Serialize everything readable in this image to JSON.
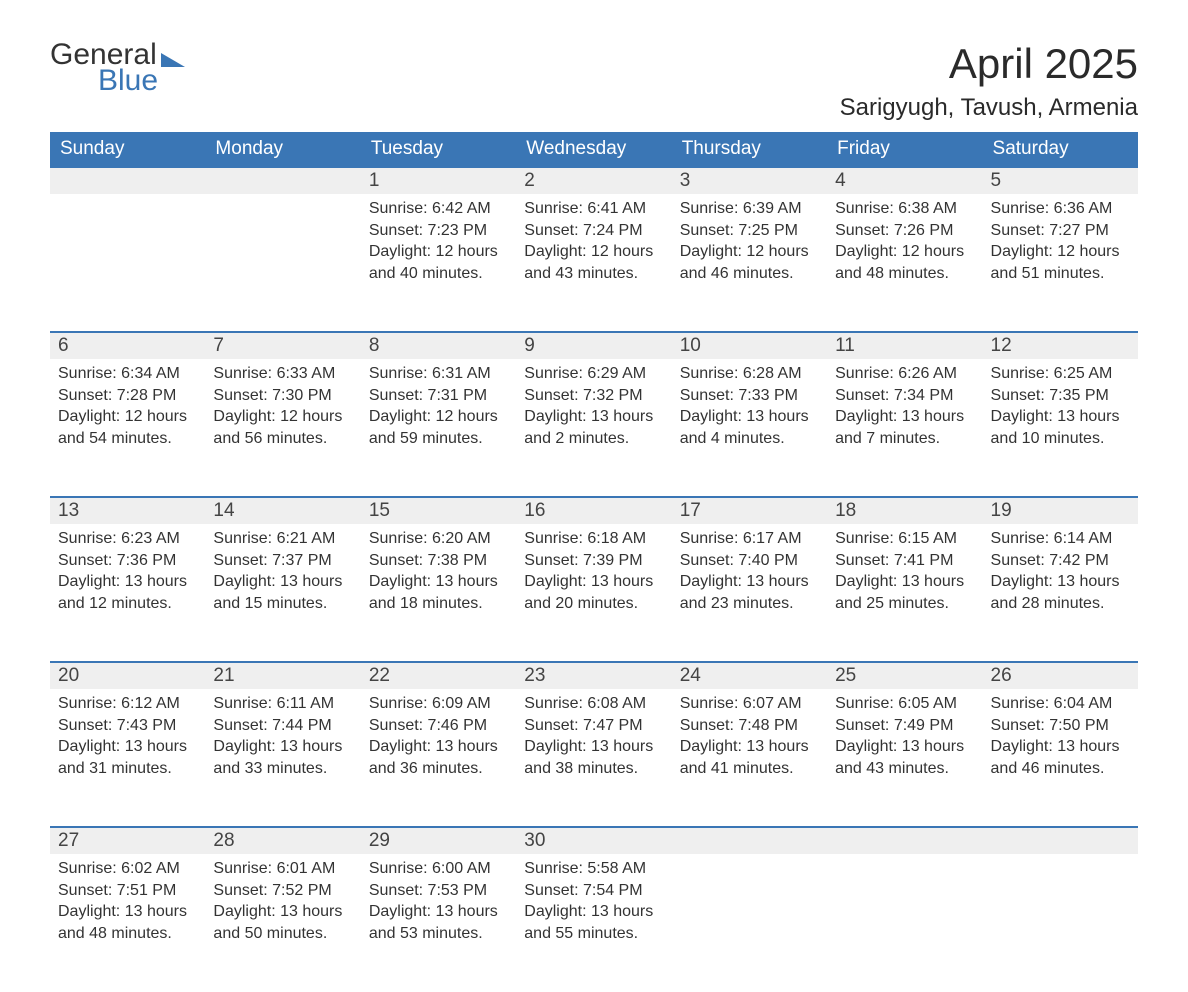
{
  "logo": {
    "text1": "General",
    "text2": "Blue"
  },
  "title": "April 2025",
  "location": "Sarigyugh, Tavush, Armenia",
  "colors": {
    "header_bg": "#3a76b5",
    "header_text": "#ffffff",
    "daynum_bg": "#efefef",
    "border_top": "#3a76b5",
    "body_text": "#333333",
    "page_bg": "#ffffff"
  },
  "typography": {
    "title_fontsize": 42,
    "location_fontsize": 24,
    "header_fontsize": 19,
    "daynum_fontsize": 19,
    "cell_fontsize": 16,
    "font_family": "Arial"
  },
  "layout": {
    "columns": 7,
    "rows": 5,
    "col_width_pct": 14.28
  },
  "weekdays": [
    "Sunday",
    "Monday",
    "Tuesday",
    "Wednesday",
    "Thursday",
    "Friday",
    "Saturday"
  ],
  "weeks": [
    [
      {
        "day": "",
        "lines": [
          "",
          "",
          "",
          ""
        ]
      },
      {
        "day": "",
        "lines": [
          "",
          "",
          "",
          ""
        ]
      },
      {
        "day": "1",
        "lines": [
          "Sunrise: 6:42 AM",
          "Sunset: 7:23 PM",
          "Daylight: 12 hours",
          "and 40 minutes."
        ]
      },
      {
        "day": "2",
        "lines": [
          "Sunrise: 6:41 AM",
          "Sunset: 7:24 PM",
          "Daylight: 12 hours",
          "and 43 minutes."
        ]
      },
      {
        "day": "3",
        "lines": [
          "Sunrise: 6:39 AM",
          "Sunset: 7:25 PM",
          "Daylight: 12 hours",
          "and 46 minutes."
        ]
      },
      {
        "day": "4",
        "lines": [
          "Sunrise: 6:38 AM",
          "Sunset: 7:26 PM",
          "Daylight: 12 hours",
          "and 48 minutes."
        ]
      },
      {
        "day": "5",
        "lines": [
          "Sunrise: 6:36 AM",
          "Sunset: 7:27 PM",
          "Daylight: 12 hours",
          "and 51 minutes."
        ]
      }
    ],
    [
      {
        "day": "6",
        "lines": [
          "Sunrise: 6:34 AM",
          "Sunset: 7:28 PM",
          "Daylight: 12 hours",
          "and 54 minutes."
        ]
      },
      {
        "day": "7",
        "lines": [
          "Sunrise: 6:33 AM",
          "Sunset: 7:30 PM",
          "Daylight: 12 hours",
          "and 56 minutes."
        ]
      },
      {
        "day": "8",
        "lines": [
          "Sunrise: 6:31 AM",
          "Sunset: 7:31 PM",
          "Daylight: 12 hours",
          "and 59 minutes."
        ]
      },
      {
        "day": "9",
        "lines": [
          "Sunrise: 6:29 AM",
          "Sunset: 7:32 PM",
          "Daylight: 13 hours",
          "and 2 minutes."
        ]
      },
      {
        "day": "10",
        "lines": [
          "Sunrise: 6:28 AM",
          "Sunset: 7:33 PM",
          "Daylight: 13 hours",
          "and 4 minutes."
        ]
      },
      {
        "day": "11",
        "lines": [
          "Sunrise: 6:26 AM",
          "Sunset: 7:34 PM",
          "Daylight: 13 hours",
          "and 7 minutes."
        ]
      },
      {
        "day": "12",
        "lines": [
          "Sunrise: 6:25 AM",
          "Sunset: 7:35 PM",
          "Daylight: 13 hours",
          "and 10 minutes."
        ]
      }
    ],
    [
      {
        "day": "13",
        "lines": [
          "Sunrise: 6:23 AM",
          "Sunset: 7:36 PM",
          "Daylight: 13 hours",
          "and 12 minutes."
        ]
      },
      {
        "day": "14",
        "lines": [
          "Sunrise: 6:21 AM",
          "Sunset: 7:37 PM",
          "Daylight: 13 hours",
          "and 15 minutes."
        ]
      },
      {
        "day": "15",
        "lines": [
          "Sunrise: 6:20 AM",
          "Sunset: 7:38 PM",
          "Daylight: 13 hours",
          "and 18 minutes."
        ]
      },
      {
        "day": "16",
        "lines": [
          "Sunrise: 6:18 AM",
          "Sunset: 7:39 PM",
          "Daylight: 13 hours",
          "and 20 minutes."
        ]
      },
      {
        "day": "17",
        "lines": [
          "Sunrise: 6:17 AM",
          "Sunset: 7:40 PM",
          "Daylight: 13 hours",
          "and 23 minutes."
        ]
      },
      {
        "day": "18",
        "lines": [
          "Sunrise: 6:15 AM",
          "Sunset: 7:41 PM",
          "Daylight: 13 hours",
          "and 25 minutes."
        ]
      },
      {
        "day": "19",
        "lines": [
          "Sunrise: 6:14 AM",
          "Sunset: 7:42 PM",
          "Daylight: 13 hours",
          "and 28 minutes."
        ]
      }
    ],
    [
      {
        "day": "20",
        "lines": [
          "Sunrise: 6:12 AM",
          "Sunset: 7:43 PM",
          "Daylight: 13 hours",
          "and 31 minutes."
        ]
      },
      {
        "day": "21",
        "lines": [
          "Sunrise: 6:11 AM",
          "Sunset: 7:44 PM",
          "Daylight: 13 hours",
          "and 33 minutes."
        ]
      },
      {
        "day": "22",
        "lines": [
          "Sunrise: 6:09 AM",
          "Sunset: 7:46 PM",
          "Daylight: 13 hours",
          "and 36 minutes."
        ]
      },
      {
        "day": "23",
        "lines": [
          "Sunrise: 6:08 AM",
          "Sunset: 7:47 PM",
          "Daylight: 13 hours",
          "and 38 minutes."
        ]
      },
      {
        "day": "24",
        "lines": [
          "Sunrise: 6:07 AM",
          "Sunset: 7:48 PM",
          "Daylight: 13 hours",
          "and 41 minutes."
        ]
      },
      {
        "day": "25",
        "lines": [
          "Sunrise: 6:05 AM",
          "Sunset: 7:49 PM",
          "Daylight: 13 hours",
          "and 43 minutes."
        ]
      },
      {
        "day": "26",
        "lines": [
          "Sunrise: 6:04 AM",
          "Sunset: 7:50 PM",
          "Daylight: 13 hours",
          "and 46 minutes."
        ]
      }
    ],
    [
      {
        "day": "27",
        "lines": [
          "Sunrise: 6:02 AM",
          "Sunset: 7:51 PM",
          "Daylight: 13 hours",
          "and 48 minutes."
        ]
      },
      {
        "day": "28",
        "lines": [
          "Sunrise: 6:01 AM",
          "Sunset: 7:52 PM",
          "Daylight: 13 hours",
          "and 50 minutes."
        ]
      },
      {
        "day": "29",
        "lines": [
          "Sunrise: 6:00 AM",
          "Sunset: 7:53 PM",
          "Daylight: 13 hours",
          "and 53 minutes."
        ]
      },
      {
        "day": "30",
        "lines": [
          "Sunrise: 5:58 AM",
          "Sunset: 7:54 PM",
          "Daylight: 13 hours",
          "and 55 minutes."
        ]
      },
      {
        "day": "",
        "lines": [
          "",
          "",
          "",
          ""
        ]
      },
      {
        "day": "",
        "lines": [
          "",
          "",
          "",
          ""
        ]
      },
      {
        "day": "",
        "lines": [
          "",
          "",
          "",
          ""
        ]
      }
    ]
  ]
}
